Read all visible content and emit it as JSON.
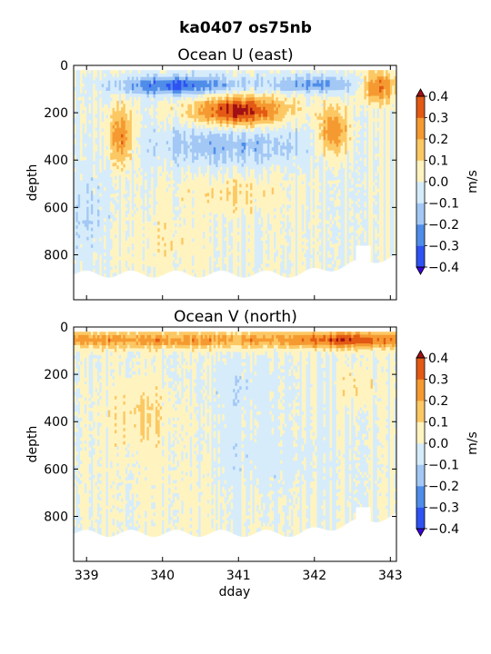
{
  "figure_title": "ka0407 os75nb",
  "chart_data": [
    {
      "type": "heatmap",
      "title": "Ocean U (east)",
      "xlabel": "",
      "ylabel": "depth",
      "xlim": [
        338.83,
        343.08
      ],
      "ylim": [
        990,
        0
      ],
      "xticks": [
        339,
        340,
        341,
        342,
        343
      ],
      "xtick_labels": [
        "",
        "",
        "",
        "",
        ""
      ],
      "yticks": [
        0,
        200,
        400,
        600,
        800
      ],
      "colorbar": {
        "label": "m/s",
        "levels": [
          -0.4,
          -0.3,
          -0.2,
          -0.1,
          0.0,
          0.1,
          0.2,
          0.3,
          0.4
        ],
        "tick_labels": [
          "−0.4",
          "−0.3",
          "−0.2",
          "−0.1",
          "0.0",
          "0.1",
          "0.2",
          "0.3",
          "0.4"
        ]
      },
      "features": [
        {
          "x": [
            339.3,
            342.7
          ],
          "depth": [
            40,
            120
          ],
          "value": -0.3
        },
        {
          "x": [
            340.4,
            341.8
          ],
          "depth": [
            130,
            260
          ],
          "value": 0.4
        },
        {
          "x": [
            339.4,
            339.6
          ],
          "depth": [
            180,
            420
          ],
          "value": 0.2
        },
        {
          "x": [
            342.1,
            342.4
          ],
          "depth": [
            180,
            420
          ],
          "value": 0.3
        },
        {
          "x": [
            340.5,
            341.5
          ],
          "depth": [
            480,
            620
          ],
          "value": 0.1
        },
        {
          "x": [
            342.7,
            343.1
          ],
          "depth": [
            20,
            150
          ],
          "value": 0.3
        }
      ],
      "bottom_depth_approx": 880
    },
    {
      "type": "heatmap",
      "title": "Ocean V (north)",
      "xlabel": "dday",
      "ylabel": "depth",
      "xlim": [
        338.83,
        343.08
      ],
      "ylim": [
        990,
        0
      ],
      "xticks": [
        339,
        340,
        341,
        342,
        343
      ],
      "xtick_labels": [
        "339",
        "340",
        "341",
        "342",
        "343"
      ],
      "yticks": [
        0,
        200,
        400,
        600,
        800
      ],
      "colorbar": {
        "label": "m/s",
        "levels": [
          -0.4,
          -0.3,
          -0.2,
          -0.1,
          0.0,
          0.1,
          0.2,
          0.3,
          0.4
        ],
        "tick_labels": [
          "−0.4",
          "−0.3",
          "−0.2",
          "−0.1",
          "0.0",
          "0.1",
          "0.2",
          "0.3",
          "0.4"
        ]
      },
      "features": [
        {
          "x": [
            338.83,
            343.08
          ],
          "depth": [
            20,
            100
          ],
          "value": 0.3
        },
        {
          "x": [
            339.3,
            340.2
          ],
          "depth": [
            250,
            500
          ],
          "value": 0.1
        },
        {
          "x": [
            342.0,
            342.8
          ],
          "depth": [
            20,
            100
          ],
          "value": 0.4
        },
        {
          "x": [
            340.2,
            342.2
          ],
          "depth": [
            500,
            700
          ],
          "value": 0.0
        }
      ],
      "bottom_depth_approx": 870
    }
  ],
  "colors": {
    "palette": [
      "#3b00e0",
      "#2f52f2",
      "#4f8de9",
      "#a3c8f5",
      "#d6ecfb",
      "#fff4c0",
      "#fcc864",
      "#f59a31",
      "#e35a14",
      "#a01014"
    ]
  }
}
